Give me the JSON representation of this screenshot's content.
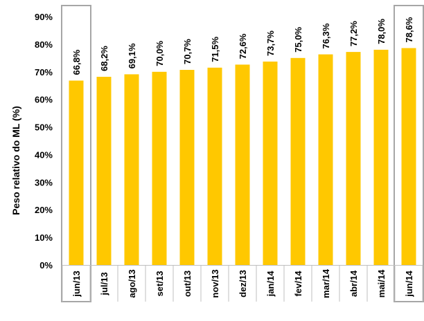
{
  "chart_data": {
    "type": "bar",
    "title": "",
    "xlabel": "",
    "ylabel": "Peso relativo do ML (%)",
    "ylim": [
      0,
      90
    ],
    "yticks": [
      0,
      10,
      20,
      30,
      40,
      50,
      60,
      70,
      80,
      90
    ],
    "ytick_labels": [
      "0%",
      "10%",
      "20%",
      "30%",
      "40%",
      "50%",
      "60%",
      "70%",
      "80%",
      "90%"
    ],
    "categories": [
      "jun/13",
      "jul/13",
      "ago/13",
      "set/13",
      "out/13",
      "nov/13",
      "dez/13",
      "jan/14",
      "fev/14",
      "mar/14",
      "abr/14",
      "mai/14",
      "jun/14"
    ],
    "values": [
      66.8,
      68.2,
      69.1,
      70.0,
      70.7,
      71.5,
      72.6,
      73.7,
      75.0,
      76.3,
      77.2,
      78.0,
      78.6
    ],
    "value_labels": [
      "66,8%",
      "68,2%",
      "69,1%",
      "70,0%",
      "70,7%",
      "71,5%",
      "72,6%",
      "73,7%",
      "75,0%",
      "76,3%",
      "77,2%",
      "78,0%",
      "78,6%"
    ],
    "highlighted_categories": [
      "jun/13",
      "jun/14"
    ],
    "grid": false,
    "legend": "none",
    "colors": {
      "bar": "#FFC800",
      "highlight_frame": "#A6A6A6",
      "axis": "#BFBFBF",
      "text": "#000000"
    }
  }
}
